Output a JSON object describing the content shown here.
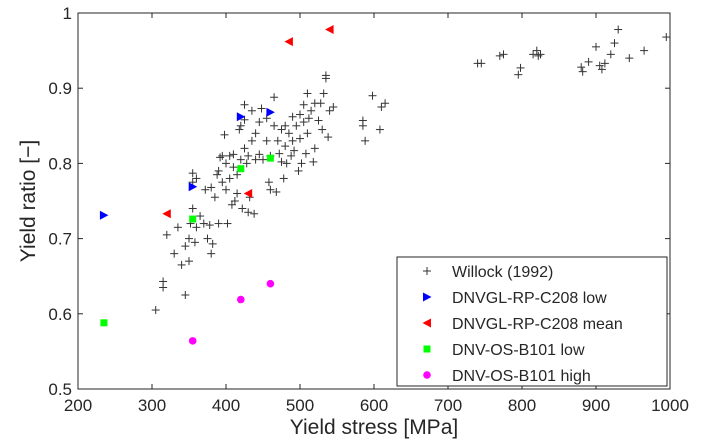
{
  "chart_data": {
    "type": "scatter",
    "xlabel": "Yield stress [MPa]",
    "ylabel": "Yield ratio [−]",
    "xlim": [
      200,
      1000
    ],
    "ylim": [
      0.5,
      1.0
    ],
    "xticks": [
      200,
      300,
      400,
      500,
      600,
      700,
      800,
      900,
      1000
    ],
    "yticks": [
      0.5,
      0.6,
      0.7,
      0.8,
      0.9,
      1.0
    ],
    "xtick_labels": [
      "200",
      "300",
      "400",
      "500",
      "600",
      "700",
      "800",
      "900",
      "1000"
    ],
    "ytick_labels": [
      "0.5",
      "0.6",
      "0.7",
      "0.8",
      "0.9",
      "1"
    ],
    "grid": false,
    "legend_position": "bottom-right",
    "series": [
      {
        "name": "Willock (1992)",
        "marker": "plus",
        "color": "#333333",
        "points": [
          [
            305,
            0.605
          ],
          [
            315,
            0.635
          ],
          [
            315,
            0.643
          ],
          [
            320,
            0.705
          ],
          [
            330,
            0.68
          ],
          [
            335,
            0.715
          ],
          [
            340,
            0.665
          ],
          [
            345,
            0.69
          ],
          [
            345,
            0.625
          ],
          [
            350,
            0.67
          ],
          [
            350,
            0.7
          ],
          [
            352,
            0.72
          ],
          [
            355,
            0.74
          ],
          [
            355,
            0.775
          ],
          [
            355,
            0.787
          ],
          [
            358,
            0.695
          ],
          [
            360,
            0.715
          ],
          [
            360,
            0.78
          ],
          [
            365,
            0.73
          ],
          [
            370,
            0.72
          ],
          [
            372,
            0.765
          ],
          [
            375,
            0.7
          ],
          [
            378,
            0.718
          ],
          [
            380,
            0.768
          ],
          [
            380,
            0.68
          ],
          [
            382,
            0.693
          ],
          [
            385,
            0.755
          ],
          [
            388,
            0.785
          ],
          [
            390,
            0.72
          ],
          [
            390,
            0.79
          ],
          [
            392,
            0.808
          ],
          [
            395,
            0.775
          ],
          [
            395,
            0.81
          ],
          [
            398,
            0.838
          ],
          [
            400,
            0.8
          ],
          [
            400,
            0.765
          ],
          [
            402,
            0.72
          ],
          [
            405,
            0.81
          ],
          [
            405,
            0.78
          ],
          [
            408,
            0.745
          ],
          [
            410,
            0.795
          ],
          [
            410,
            0.812
          ],
          [
            412,
            0.75
          ],
          [
            415,
            0.76
          ],
          [
            415,
            0.785
          ],
          [
            418,
            0.845
          ],
          [
            420,
            0.805
          ],
          [
            420,
            0.85
          ],
          [
            422,
            0.74
          ],
          [
            425,
            0.82
          ],
          [
            425,
            0.858
          ],
          [
            425,
            0.878
          ],
          [
            428,
            0.8
          ],
          [
            430,
            0.81
          ],
          [
            430,
            0.735
          ],
          [
            432,
            0.755
          ],
          [
            435,
            0.83
          ],
          [
            435,
            0.87
          ],
          [
            438,
            0.733
          ],
          [
            440,
            0.805
          ],
          [
            440,
            0.84
          ],
          [
            445,
            0.855
          ],
          [
            445,
            0.812
          ],
          [
            448,
            0.873
          ],
          [
            450,
            0.805
          ],
          [
            455,
            0.86
          ],
          [
            455,
            0.83
          ],
          [
            458,
            0.775
          ],
          [
            460,
            0.765
          ],
          [
            460,
            0.81
          ],
          [
            465,
            0.85
          ],
          [
            465,
            0.888
          ],
          [
            468,
            0.762
          ],
          [
            470,
            0.83
          ],
          [
            472,
            0.813
          ],
          [
            475,
            0.845
          ],
          [
            475,
            0.802
          ],
          [
            478,
            0.78
          ],
          [
            480,
            0.85
          ],
          [
            480,
            0.823
          ],
          [
            482,
            0.8
          ],
          [
            485,
            0.84
          ],
          [
            488,
            0.81
          ],
          [
            490,
            0.862
          ],
          [
            490,
            0.83
          ],
          [
            492,
            0.817
          ],
          [
            495,
            0.85
          ],
          [
            498,
            0.79
          ],
          [
            500,
            0.865
          ],
          [
            500,
            0.833
          ],
          [
            502,
            0.8
          ],
          [
            505,
            0.855
          ],
          [
            505,
            0.878
          ],
          [
            508,
            0.813
          ],
          [
            510,
            0.893
          ],
          [
            510,
            0.84
          ],
          [
            512,
            0.86
          ],
          [
            515,
            0.87
          ],
          [
            518,
            0.802
          ],
          [
            520,
            0.88
          ],
          [
            520,
            0.82
          ],
          [
            525,
            0.857
          ],
          [
            528,
            0.88
          ],
          [
            530,
            0.845
          ],
          [
            532,
            0.893
          ],
          [
            535,
            0.913
          ],
          [
            535,
            0.917
          ],
          [
            538,
            0.835
          ],
          [
            540,
            0.87
          ],
          [
            545,
            0.875
          ],
          [
            585,
            0.857
          ],
          [
            585,
            0.85
          ],
          [
            588,
            0.83
          ],
          [
            598,
            0.89
          ],
          [
            608,
            0.845
          ],
          [
            610,
            0.875
          ],
          [
            615,
            0.88
          ],
          [
            740,
            0.933
          ],
          [
            745,
            0.933
          ],
          [
            770,
            0.943
          ],
          [
            775,
            0.945
          ],
          [
            795,
            0.918
          ],
          [
            798,
            0.927
          ],
          [
            815,
            0.945
          ],
          [
            820,
            0.95
          ],
          [
            822,
            0.943
          ],
          [
            825,
            0.945
          ],
          [
            880,
            0.928
          ],
          [
            882,
            0.922
          ],
          [
            890,
            0.935
          ],
          [
            900,
            0.955
          ],
          [
            905,
            0.93
          ],
          [
            908,
            0.925
          ],
          [
            912,
            0.933
          ],
          [
            920,
            0.945
          ],
          [
            925,
            0.96
          ],
          [
            930,
            0.978
          ],
          [
            945,
            0.94
          ],
          [
            965,
            0.95
          ],
          [
            995,
            0.968
          ]
        ]
      },
      {
        "name": "DNVGL-RP-C208 low",
        "marker": "triangle-right",
        "color": "#0000ff",
        "points": [
          [
            235,
            0.731
          ],
          [
            355,
            0.769
          ],
          [
            420,
            0.862
          ],
          [
            460,
            0.868
          ]
        ]
      },
      {
        "name": "DNVGL-RP-C208 mean",
        "marker": "triangle-left",
        "color": "#ff0000",
        "points": [
          [
            320,
            0.733
          ],
          [
            430,
            0.76
          ],
          [
            485,
            0.962
          ],
          [
            540,
            0.978
          ]
        ]
      },
      {
        "name": "DNV-OS-B101 low",
        "marker": "square",
        "color": "#00ff00",
        "points": [
          [
            235,
            0.588
          ],
          [
            355,
            0.726
          ],
          [
            420,
            0.793
          ],
          [
            460,
            0.807
          ]
        ]
      },
      {
        "name": "DNV-OS-B101 high",
        "marker": "circle",
        "color": "#ff00ff",
        "points": [
          [
            355,
            0.564
          ],
          [
            420,
            0.619
          ],
          [
            460,
            0.64
          ]
        ]
      }
    ]
  }
}
